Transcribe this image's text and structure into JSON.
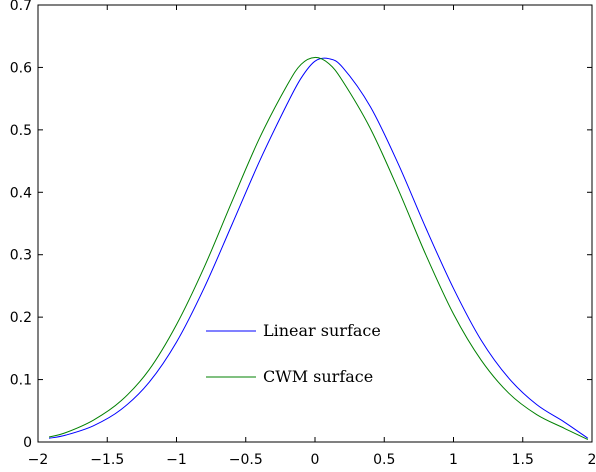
{
  "chart_data": {
    "type": "line",
    "title": "",
    "xlabel": "",
    "ylabel": "",
    "xlim": [
      -2,
      2
    ],
    "ylim": [
      0,
      0.7
    ],
    "xticks": [
      -2,
      -1.5,
      -1,
      -0.5,
      0,
      0.5,
      1,
      1.5,
      2
    ],
    "xtick_labels": [
      "−2",
      "−1.5",
      "−1",
      "−0.5",
      "0",
      "0.5",
      "1",
      "1.5",
      "2"
    ],
    "yticks": [
      0,
      0.1,
      0.2,
      0.3,
      0.4,
      0.5,
      0.6,
      0.7
    ],
    "ytick_labels": [
      "0",
      "0.1",
      "0.2",
      "0.3",
      "0.4",
      "0.5",
      "0.6",
      "0.7"
    ],
    "grid": false,
    "legend_position": "bottom-center",
    "series": [
      {
        "name": "Linear surface",
        "color": "#0000ff",
        "x": [
          -1.92,
          -1.8,
          -1.6,
          -1.4,
          -1.2,
          -1.0,
          -0.8,
          -0.6,
          -0.4,
          -0.2,
          -0.1,
          0.0,
          0.1,
          0.2,
          0.4,
          0.6,
          0.8,
          1.0,
          1.2,
          1.4,
          1.6,
          1.8,
          1.97
        ],
        "y": [
          0.006,
          0.011,
          0.026,
          0.052,
          0.095,
          0.16,
          0.247,
          0.348,
          0.45,
          0.542,
          0.583,
          0.61,
          0.614,
          0.6,
          0.537,
          0.446,
          0.343,
          0.246,
          0.163,
          0.102,
          0.06,
          0.032,
          0.006
        ]
      },
      {
        "name": "CWM surface",
        "color": "#008000",
        "x": [
          -1.92,
          -1.8,
          -1.6,
          -1.4,
          -1.2,
          -1.0,
          -0.8,
          -0.6,
          -0.4,
          -0.2,
          -0.1,
          0.0,
          0.1,
          0.2,
          0.4,
          0.6,
          0.8,
          1.0,
          1.2,
          1.4,
          1.6,
          1.8,
          1.97
        ],
        "y": [
          0.008,
          0.015,
          0.035,
          0.066,
          0.115,
          0.188,
          0.28,
          0.385,
          0.487,
          0.572,
          0.605,
          0.616,
          0.606,
          0.578,
          0.502,
          0.405,
          0.3,
          0.205,
          0.131,
          0.078,
          0.044,
          0.022,
          0.004
        ]
      }
    ]
  }
}
